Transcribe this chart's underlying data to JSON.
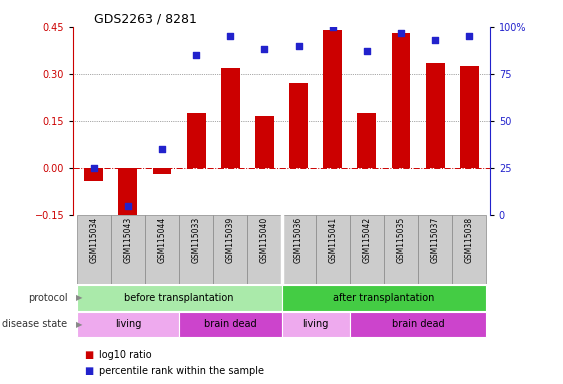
{
  "title": "GDS2263 / 8281",
  "samples": [
    "GSM115034",
    "GSM115043",
    "GSM115044",
    "GSM115033",
    "GSM115039",
    "GSM115040",
    "GSM115036",
    "GSM115041",
    "GSM115042",
    "GSM115035",
    "GSM115037",
    "GSM115038"
  ],
  "log10_ratio": [
    -0.04,
    -0.155,
    -0.02,
    0.175,
    0.32,
    0.165,
    0.27,
    0.44,
    0.175,
    0.43,
    0.335,
    0.325
  ],
  "percentile": [
    25,
    5,
    35,
    85,
    95,
    88,
    90,
    100,
    87,
    97,
    93,
    95
  ],
  "ylim": [
    -0.15,
    0.45
  ],
  "yticks_left": [
    -0.15,
    0.0,
    0.15,
    0.3,
    0.45
  ],
  "yticks_right": [
    0,
    25,
    50,
    75,
    100
  ],
  "bar_color": "#cc0000",
  "dot_color": "#2222cc",
  "bg_color": "#ffffff",
  "protocol_groups": [
    {
      "label": "before transplantation",
      "start": 0,
      "end": 6,
      "color": "#aaeaaa"
    },
    {
      "label": "after transplantation",
      "start": 6,
      "end": 12,
      "color": "#44cc44"
    }
  ],
  "disease_groups": [
    {
      "label": "living",
      "start": 0,
      "end": 3,
      "color": "#eeaaee"
    },
    {
      "label": "brain dead",
      "start": 3,
      "end": 6,
      "color": "#cc44cc"
    },
    {
      "label": "living",
      "start": 6,
      "end": 8,
      "color": "#eeaaee"
    },
    {
      "label": "brain dead",
      "start": 8,
      "end": 12,
      "color": "#cc44cc"
    }
  ],
  "legend_items": [
    {
      "label": "log10 ratio",
      "color": "#cc0000"
    },
    {
      "label": "percentile rank within the sample",
      "color": "#2222cc"
    }
  ],
  "tick_bg_color": "#cccccc",
  "tick_border_color": "#888888",
  "hline_color": "#cc0000",
  "dotted_color": "#555555",
  "left_spine_color": "#cc0000",
  "right_spine_color": "#2222cc"
}
